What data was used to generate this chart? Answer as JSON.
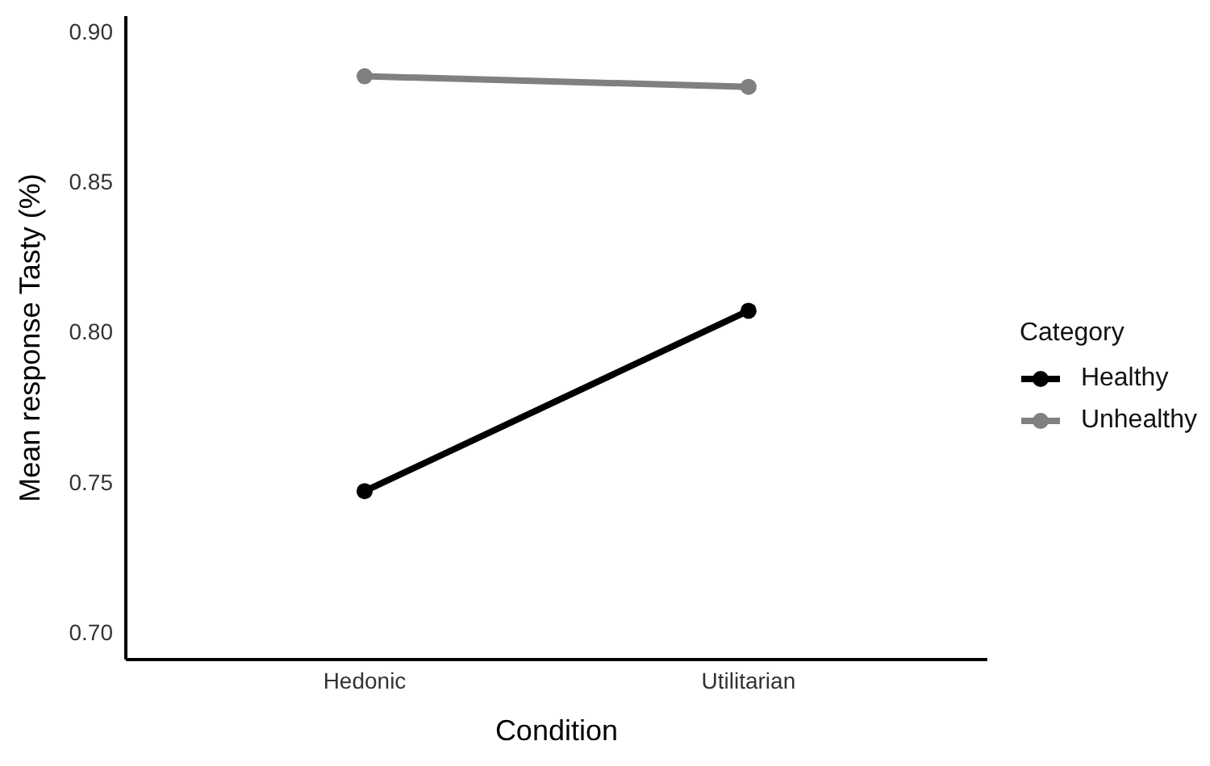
{
  "chart_data": {
    "type": "line",
    "xlabel": "Condition",
    "ylabel": "Mean response  Tasty (%)",
    "legend_title": "Category",
    "categories": [
      "Hedonic",
      "Utilitarian"
    ],
    "series": [
      {
        "name": "Healthy",
        "color": "#000000",
        "values": [
          0.747,
          0.807
        ]
      },
      {
        "name": "Unhealthy",
        "color": "#808080",
        "values": [
          0.885,
          0.8815
        ]
      }
    ],
    "ylim": [
      0.691,
      0.905
    ],
    "yticks": [
      {
        "value": 0.7,
        "label": "0.70"
      },
      {
        "value": 0.75,
        "label": "0.75"
      },
      {
        "value": 0.8,
        "label": "0.80"
      },
      {
        "value": 0.85,
        "label": "0.85"
      },
      {
        "value": 0.9,
        "label": "0.90"
      }
    ],
    "grid": false,
    "legend": "right",
    "marker": "circle",
    "line_style": "solid"
  }
}
